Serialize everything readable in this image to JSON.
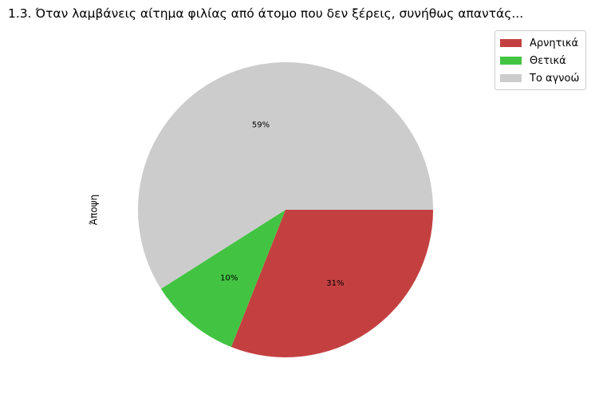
{
  "chart_data": {
    "type": "pie",
    "title": "1.3.  Όταν λαμβάνεις αίτημα φιλίας από άτομο που δεν ξέρεις, συνήθως απαντάς...",
    "ylabel": "Άποψη",
    "legend_position": "top-right",
    "slices": [
      {
        "label": "Αρνητικά",
        "value": 31,
        "pct_label": "31%",
        "color": "#c44040"
      },
      {
        "label": "Θετικά",
        "value": 10,
        "pct_label": "10%",
        "color": "#42c442"
      },
      {
        "label": "Το αγνοώ",
        "value": 59,
        "pct_label": "59%",
        "color": "#cccccc"
      }
    ]
  }
}
